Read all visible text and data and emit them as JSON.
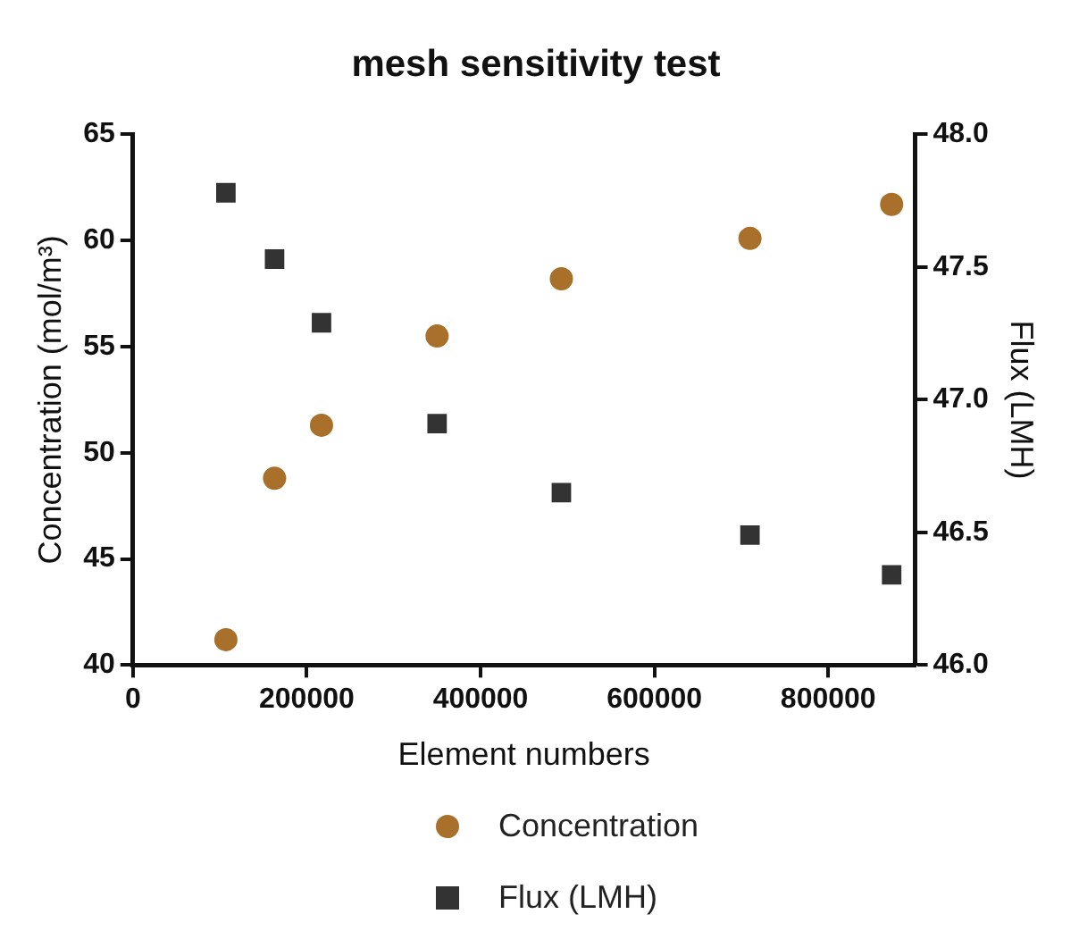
{
  "chart_data": {
    "type": "scatter",
    "title": "mesh sensitivity test",
    "xlabel": "Element numbers",
    "ylabel": "Concentration (mol/m³)",
    "y2label": "Flux (LMH)",
    "x": [
      107000,
      163000,
      217000,
      350000,
      493000,
      710000,
      873000
    ],
    "series": [
      {
        "name": "Concentration",
        "color": "#a8702a",
        "marker": "circle",
        "values": [
          41.2,
          48.8,
          51.3,
          55.5,
          58.2,
          60.1,
          61.7
        ]
      },
      {
        "name": "Flux (LMH)",
        "color": "#333333",
        "marker": "square",
        "axis": "y2",
        "values": [
          47.78,
          47.53,
          47.29,
          46.91,
          46.65,
          46.49,
          46.34
        ]
      }
    ],
    "xlim": [
      0,
      900000
    ],
    "xticks": [
      0,
      200000,
      400000,
      600000,
      800000
    ],
    "ylim": [
      40,
      65
    ],
    "yticks": [
      40,
      45,
      50,
      55,
      60,
      65
    ],
    "y2lim": [
      46.0,
      48.0
    ],
    "y2ticks": [
      {
        "value": 46,
        "label": "46.0"
      },
      {
        "value": 46.5,
        "label": "46.5"
      },
      {
        "value": 47,
        "label": "47.0"
      },
      {
        "value": 47.5,
        "label": "47.5"
      },
      {
        "value": 48,
        "label": "48.0"
      }
    ],
    "grid": false,
    "legend": "bottom"
  }
}
